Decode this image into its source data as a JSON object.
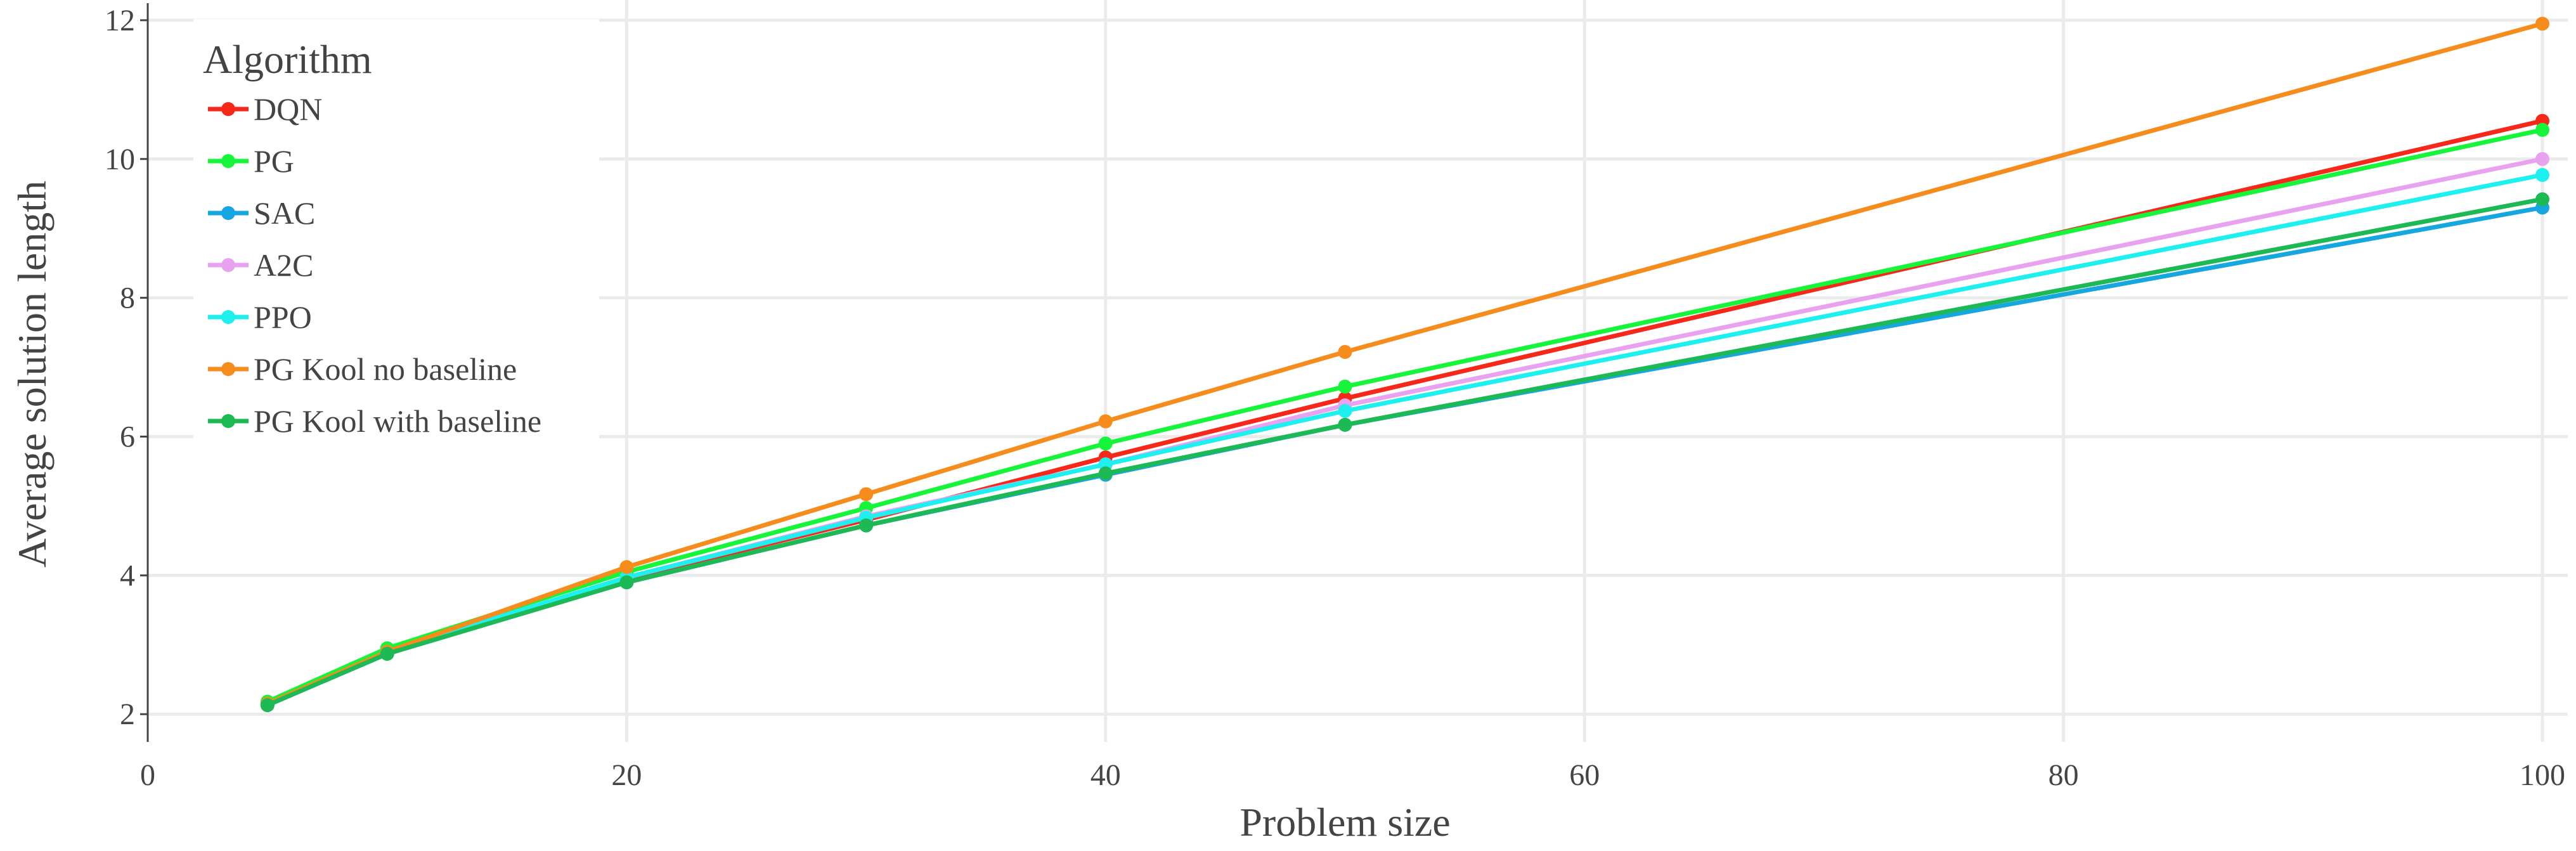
{
  "chart_data": {
    "type": "line",
    "xlabel": "Problem size",
    "ylabel": "Average solution length",
    "xlim": [
      0,
      100
    ],
    "ylim": [
      1.6,
      12.2
    ],
    "xticks": [
      0,
      20,
      40,
      60,
      80,
      100
    ],
    "yticks": [
      2,
      4,
      6,
      8,
      10,
      12
    ],
    "grid": true,
    "legend": {
      "title": "Algorithm",
      "placement": "top-left"
    },
    "x": [
      5,
      10,
      20,
      30,
      40,
      50,
      100
    ],
    "series": [
      {
        "name": "DQN",
        "color": "#f5281a",
        "values": [
          2.15,
          2.9,
          3.95,
          4.8,
          5.7,
          6.55,
          10.55
        ]
      },
      {
        "name": "PG",
        "color": "#17f53a",
        "values": [
          2.18,
          2.95,
          4.05,
          4.97,
          5.9,
          6.72,
          10.42
        ]
      },
      {
        "name": "SAC",
        "color": "#17a7e0",
        "values": [
          2.13,
          2.87,
          3.9,
          4.72,
          5.45,
          6.17,
          9.3
        ]
      },
      {
        "name": "A2C",
        "color": "#e8a2ef",
        "values": [
          2.14,
          2.9,
          3.97,
          4.85,
          5.6,
          6.45,
          10.0
        ]
      },
      {
        "name": "PPO",
        "color": "#1ef0ef",
        "values": [
          2.14,
          2.9,
          3.97,
          4.83,
          5.6,
          6.37,
          9.77
        ]
      },
      {
        "name": "PG Kool no baseline",
        "color": "#f58c1c",
        "values": [
          2.15,
          2.9,
          4.12,
          5.17,
          6.22,
          7.22,
          11.95
        ]
      },
      {
        "name": "PG Kool with baseline",
        "color": "#1db954",
        "values": [
          2.13,
          2.87,
          3.9,
          4.72,
          5.47,
          6.17,
          9.42
        ]
      }
    ]
  }
}
